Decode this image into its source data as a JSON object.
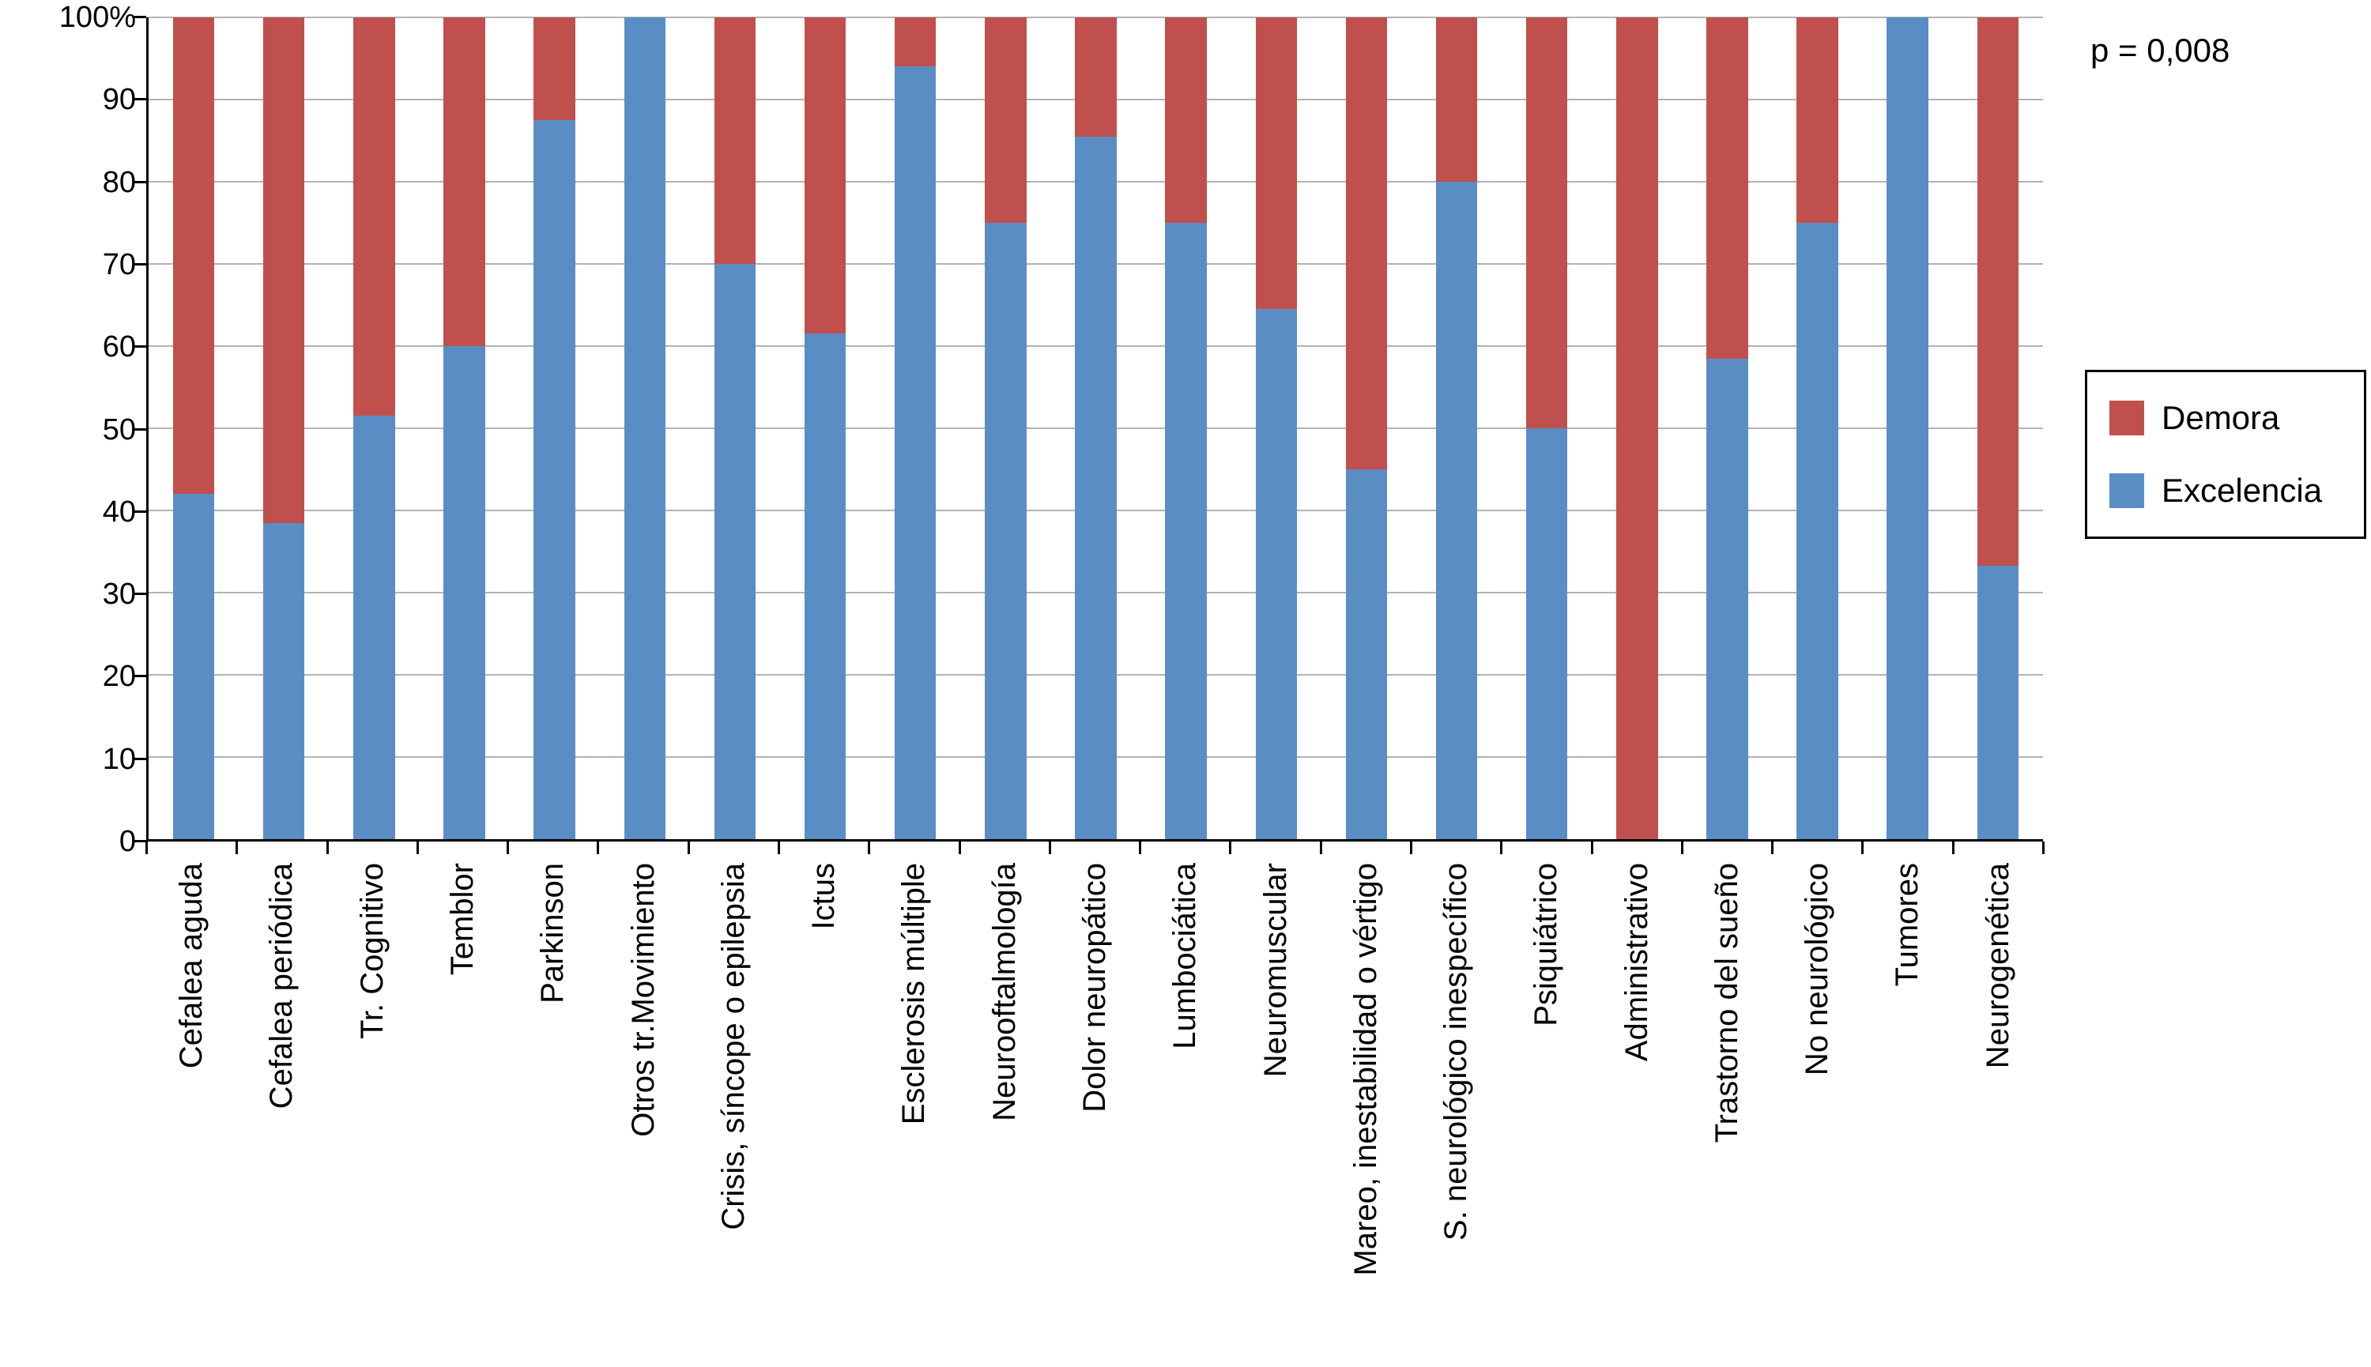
{
  "annotation": "p = 0,008",
  "colors": {
    "demora": "#c0504d",
    "excelencia": "#5b8dc5",
    "grid": "#b3b3b3",
    "axis": "#000000"
  },
  "legend": [
    {
      "label": "Demora",
      "color": "#c0504d"
    },
    {
      "label": "Excelencia",
      "color": "#5b8dc5"
    }
  ],
  "chart_data": {
    "type": "bar",
    "stacked": true,
    "unit": "%",
    "title": "",
    "xlabel": "",
    "ylabel": "",
    "ylim": [
      0,
      100
    ],
    "grid": true,
    "legend_position": "right",
    "yticks": [
      0,
      10,
      20,
      30,
      40,
      50,
      60,
      70,
      80,
      90,
      100
    ],
    "ytick_labels": [
      "0",
      "10",
      "20",
      "30",
      "40",
      "50",
      "60",
      "70",
      "80",
      "90",
      "100%"
    ],
    "categories": [
      "Cefalea aguda",
      "Cefalea periódica",
      "Tr. Cognitivo",
      "Temblor",
      "Parkinson",
      "Otros tr.Movimiento",
      "Crisis, síncope o epilepsia",
      "Ictus",
      "Esclerosis múltiple",
      "Neurooftalmología",
      "Dolor neuropático",
      "Lumbociática",
      "Neuromuscular",
      "Mareo, inestabilidad o vértigo",
      "S. neurológico inespecífico",
      "Psiquiátrico",
      "Administrativo",
      "Trastorno del sueño",
      "No neurológico",
      "Tumores",
      "Neurogenética"
    ],
    "series": [
      {
        "name": "Excelencia",
        "color": "#5b8dc5",
        "values": [
          42,
          38.5,
          51.5,
          60,
          87.5,
          100,
          70,
          61.5,
          94,
          75,
          85.5,
          75,
          64.5,
          45,
          80,
          50,
          0,
          58.5,
          75,
          100,
          33.3
        ]
      },
      {
        "name": "Demora",
        "color": "#c0504d",
        "values": [
          58,
          61.5,
          48.5,
          40,
          12.5,
          0,
          30,
          38.5,
          6,
          25,
          14.5,
          25,
          35.5,
          55,
          20,
          50,
          100,
          41.5,
          25,
          0,
          66.7
        ]
      }
    ]
  }
}
